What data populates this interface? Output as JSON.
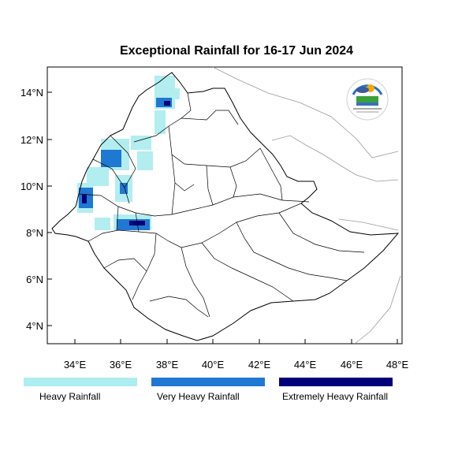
{
  "title": "Exceptional Rainfall for 16-17 Jun 2024",
  "map": {
    "lon_range": [
      32.8,
      48.2
    ],
    "lat_range": [
      3.2,
      15.0
    ],
    "x_ticks": [
      "34°E",
      "36°E",
      "38°E",
      "40°E",
      "42°E",
      "44°E",
      "46°E",
      "48°E"
    ],
    "y_ticks": [
      "14°N",
      "12°N",
      "10°N",
      "8°N",
      "6°N",
      "4°N"
    ],
    "logo_text": "ኢትዮጵያ ሜቴዎሮሎጂ ኢንስቲትዩት"
  },
  "legend": [
    {
      "label": "Heavy Rainfall",
      "color": "#aeeef0"
    },
    {
      "label": "Very Heavy Rainfall",
      "color": "#1f78d1"
    },
    {
      "label": "Extremely Heavy Rainfall",
      "color": "#00007a"
    }
  ]
}
